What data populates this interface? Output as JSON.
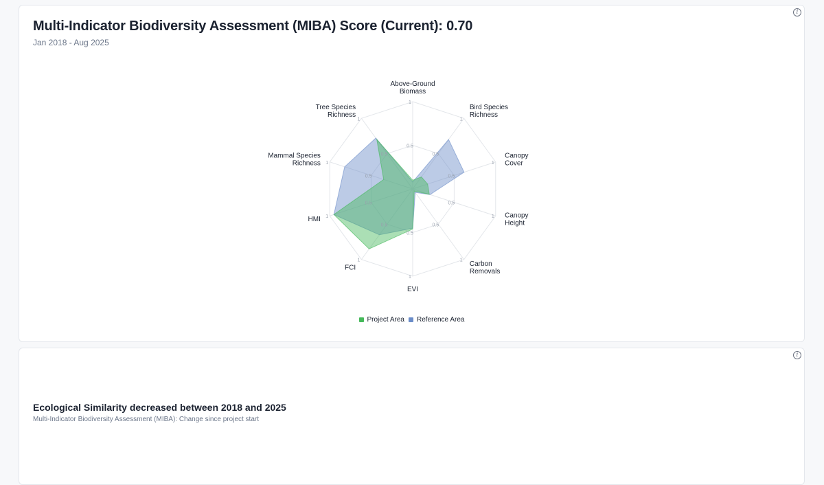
{
  "card1": {
    "title": "Multi-Indicator Biodiversity Assessment (MIBA) Score (Current): 0.70",
    "subtitle": "Jan 2018 - Aug 2025",
    "info_icon": "info-icon"
  },
  "card2": {
    "title": "Ecological Similarity decreased between 2018 and 2025",
    "subtitle": "Multi-Indicator Biodiversity Assessment (MIBA): Change since project start",
    "info_icon": "info-icon"
  },
  "chart_data": {
    "type": "radar",
    "axes": [
      [
        "Above-Ground",
        "Biomass"
      ],
      [
        "Bird Species",
        "Richness"
      ],
      [
        "Canopy",
        "Cover"
      ],
      [
        "Canopy",
        "Height"
      ],
      [
        "Carbon",
        "Removals"
      ],
      [
        "EVI"
      ],
      [
        "FCI"
      ],
      [
        "HMI"
      ],
      [
        "Mammal Species",
        "Richness"
      ],
      [
        "Tree Species",
        "Richness"
      ]
    ],
    "range": [
      0,
      1
    ],
    "ticks": [
      0.5,
      1
    ],
    "series": [
      {
        "name": "Project Area",
        "color": "#45b95a",
        "values": [
          0.1,
          0.17,
          0.18,
          0.2,
          0.03,
          0.46,
          0.85,
          0.95,
          0.35,
          0.7
        ]
      },
      {
        "name": "Reference Area",
        "color": "#6a8cc8",
        "values": [
          0.08,
          0.7,
          0.62,
          0.21,
          0.05,
          0.45,
          0.65,
          0.95,
          0.82,
          0.72
        ]
      }
    ],
    "legend": "bottom"
  }
}
